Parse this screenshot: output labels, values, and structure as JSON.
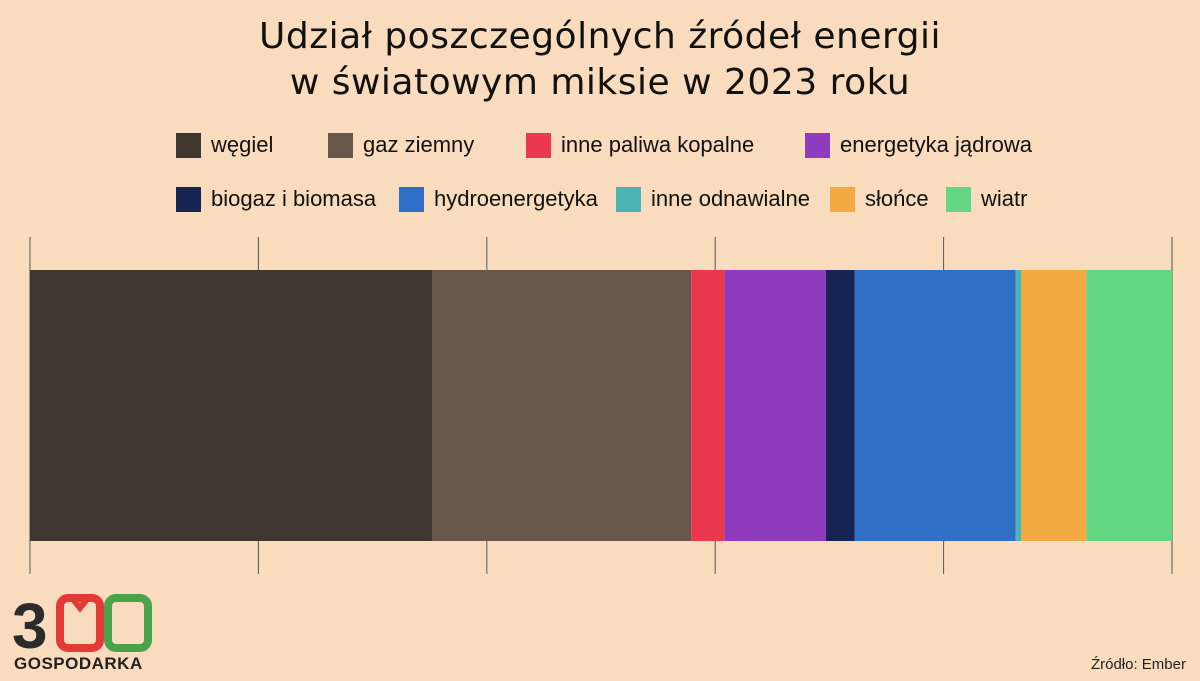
{
  "title": {
    "line1": "Udział poszczególnych źródeł energii",
    "line2": "w światowym miksie w 2023 roku"
  },
  "source": "Źródło: Ember",
  "logo": {
    "number": "300",
    "text": "GOSPODARKA"
  },
  "chart_data": {
    "type": "bar",
    "orientation": "horizontal-stacked",
    "xlim": [
      0,
      100
    ],
    "grid": true,
    "legend_position": "top",
    "series": [
      {
        "name": "węgiel",
        "value": 35.2,
        "color": "#3f3630"
      },
      {
        "name": "gaz ziemny",
        "value": 22.7,
        "color": "#68584b"
      },
      {
        "name": "inne paliwa kopalne",
        "value": 2.9,
        "color": "#ec384e"
      },
      {
        "name": "energetyka jądrowa",
        "value": 8.9,
        "color": "#8e3bbd"
      },
      {
        "name": "biogaz i biomasa",
        "value": 2.5,
        "color": "#172353"
      },
      {
        "name": "hydroenergetyka",
        "value": 14.1,
        "color": "#2f6fc8"
      },
      {
        "name": "inne odnawialne",
        "value": 0.5,
        "color": "#4db4b4"
      },
      {
        "name": "słońce",
        "value": 5.7,
        "color": "#f3aa42"
      },
      {
        "name": "wiatr",
        "value": 7.5,
        "color": "#62d681"
      }
    ]
  }
}
